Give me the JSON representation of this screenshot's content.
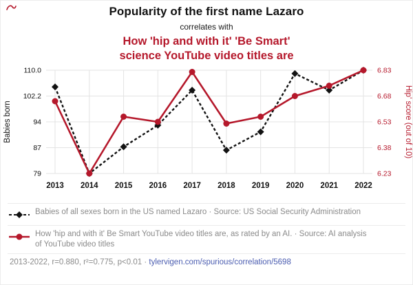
{
  "header": {
    "title": "Popularity of the first name Lazaro",
    "connector": "correlates with",
    "subtitle_line1": "How 'hip and with it' 'Be Smart'",
    "subtitle_line2": "science YouTube video titles are"
  },
  "colors": {
    "accent_red": "#b5182b",
    "series_black": "#121212",
    "grid": "#e3e3e3",
    "legend_text": "#8a8a8a",
    "link_blue": "#4a5cb0"
  },
  "chart_data": {
    "type": "line",
    "x": [
      "2013",
      "2014",
      "2015",
      "2016",
      "2017",
      "2018",
      "2019",
      "2020",
      "2021",
      "2022"
    ],
    "series": [
      {
        "id": "babies",
        "name": "Babies born (Lazaro)",
        "axis": "left",
        "color": "#121212",
        "marker": "diamond",
        "dash": "4 3",
        "width": 2.4,
        "values": [
          105,
          79,
          87,
          93.5,
          104,
          86,
          91.5,
          109,
          104,
          110
        ]
      },
      {
        "id": "hip",
        "name": "'Hip' score of Be Smart video titles",
        "axis": "right",
        "color": "#b5182b",
        "marker": "circle",
        "dash": "",
        "width": 2.6,
        "values": [
          6.65,
          6.23,
          6.56,
          6.53,
          6.82,
          6.52,
          6.56,
          6.68,
          6.74,
          6.83
        ]
      }
    ],
    "left_axis": {
      "label": "Babies born",
      "ticks": [
        "110.0",
        "102.2",
        "94",
        "87",
        "79"
      ],
      "min": 79,
      "max": 110
    },
    "right_axis": {
      "label": "Hip' score (out of 10)",
      "ticks": [
        "6.83",
        "6.68",
        "6.53",
        "6.38",
        "6.23"
      ],
      "min": 6.23,
      "max": 6.83
    },
    "grid": true,
    "legend_position": "below"
  },
  "legend": [
    {
      "text": "Babies of all sexes born in the US named Lazaro · Source: US Social Security Administration"
    },
    {
      "text": "How 'hip and with it' Be Smart YouTube video titles are, as rated by an AI. · Source: AI analysis of YouTube video titles"
    }
  ],
  "footer": {
    "stats": "2013-2022, r=0.880, r²=0.775, p<0.01 ·",
    "link": "tylervigen.com/spurious/correlation/5698"
  }
}
